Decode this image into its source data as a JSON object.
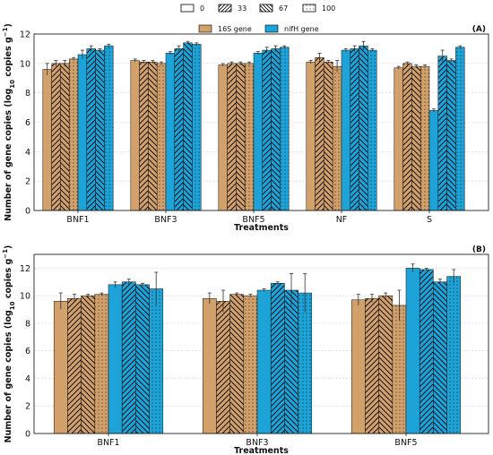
{
  "legend_top": [
    "0",
    "33",
    "67",
    "100"
  ],
  "legend_genes": [
    "16S gene",
    "nifH gene"
  ],
  "colors": {
    "gene16s": "#d2a06a",
    "nifh": "#1ea3d8",
    "grid": "#cfcfcf",
    "axis": "#222222"
  },
  "chart_data": [
    {
      "type": "bar",
      "panel_label": "(A)",
      "xlabel": "Treatments",
      "ylabel": "Number of gene copies (log",
      "ylabel_sub": "10",
      "ylabel_tail": " copies g",
      "ylabel_sup": "−1",
      "ylabel_end": ")",
      "ylim": [
        0,
        12
      ],
      "yticks": [
        0,
        2,
        4,
        6,
        8,
        10,
        12
      ],
      "grid": true,
      "categories": [
        "BNF1",
        "BNF3",
        "BNF5",
        "NF",
        "S"
      ],
      "series": [
        {
          "name": "0",
          "gene": "16S gene",
          "values": [
            9.6,
            10.2,
            9.9,
            10.1,
            9.7
          ],
          "errors": [
            0.4,
            0.1,
            0.1,
            0.1,
            0.1
          ]
        },
        {
          "name": "33",
          "gene": "16S gene",
          "values": [
            10.0,
            10.1,
            10.0,
            10.4,
            10.0
          ],
          "errors": [
            0.2,
            0.1,
            0.1,
            0.3,
            0.1
          ]
        },
        {
          "name": "67",
          "gene": "16S gene",
          "values": [
            10.0,
            10.1,
            10.0,
            10.1,
            9.8
          ],
          "errors": [
            0.2,
            0.1,
            0.1,
            0.1,
            0.1
          ]
        },
        {
          "name": "100",
          "gene": "16S gene",
          "values": [
            10.3,
            10.0,
            10.0,
            9.8,
            9.8
          ],
          "errors": [
            0.1,
            0.1,
            0.1,
            0.4,
            0.1
          ]
        },
        {
          "name": "0",
          "gene": "nifH gene",
          "values": [
            10.6,
            10.7,
            10.7,
            10.9,
            6.8
          ],
          "errors": [
            0.3,
            0.1,
            0.1,
            0.1,
            0.1
          ]
        },
        {
          "name": "33",
          "gene": "nifH gene",
          "values": [
            11.0,
            11.0,
            10.9,
            11.0,
            10.5
          ],
          "errors": [
            0.2,
            0.2,
            0.2,
            0.2,
            0.4
          ]
        },
        {
          "name": "67",
          "gene": "nifH gene",
          "values": [
            10.9,
            11.4,
            11.0,
            11.2,
            10.2
          ],
          "errors": [
            0.1,
            0.1,
            0.2,
            0.3,
            0.1
          ]
        },
        {
          "name": "100",
          "gene": "nifH gene",
          "values": [
            11.2,
            11.3,
            11.1,
            10.9,
            11.1
          ],
          "errors": [
            0.1,
            0.1,
            0.1,
            0.1,
            0.1
          ]
        }
      ]
    },
    {
      "type": "bar",
      "panel_label": "(B)",
      "xlabel": "Treatments",
      "ylabel": "Number of gene copies (log",
      "ylabel_sub": "10",
      "ylabel_tail": " copies g",
      "ylabel_sup": "−1",
      "ylabel_end": ")",
      "ylim": [
        0,
        13
      ],
      "yticks": [
        0,
        2,
        4,
        6,
        8,
        10,
        12
      ],
      "grid": true,
      "categories": [
        "BNF1",
        "BNF3",
        "BNF5"
      ],
      "series": [
        {
          "name": "0",
          "gene": "16S gene",
          "values": [
            9.6,
            9.8,
            9.7
          ],
          "errors": [
            0.6,
            0.4,
            0.4
          ]
        },
        {
          "name": "33",
          "gene": "16S gene",
          "values": [
            9.8,
            9.6,
            9.8
          ],
          "errors": [
            0.3,
            0.8,
            0.3
          ]
        },
        {
          "name": "67",
          "gene": "16S gene",
          "values": [
            10.0,
            10.1,
            10.0
          ],
          "errors": [
            0.1,
            0.1,
            0.2
          ]
        },
        {
          "name": "100",
          "gene": "16S gene",
          "values": [
            10.1,
            10.0,
            9.3
          ],
          "errors": [
            0.1,
            0.1,
            1.1
          ]
        },
        {
          "name": "0",
          "gene": "nifH gene",
          "values": [
            10.8,
            10.4,
            12.0
          ],
          "errors": [
            0.2,
            0.1,
            0.3
          ]
        },
        {
          "name": "33",
          "gene": "nifH gene",
          "values": [
            11.0,
            10.9,
            11.9
          ],
          "errors": [
            0.2,
            0.1,
            0.1
          ]
        },
        {
          "name": "67",
          "gene": "nifH gene",
          "values": [
            10.8,
            10.4,
            11.0
          ],
          "errors": [
            0.1,
            1.2,
            0.2
          ]
        },
        {
          "name": "100",
          "gene": "nifH gene",
          "values": [
            10.5,
            10.2,
            11.4
          ],
          "errors": [
            1.2,
            1.4,
            0.5
          ]
        }
      ]
    }
  ]
}
